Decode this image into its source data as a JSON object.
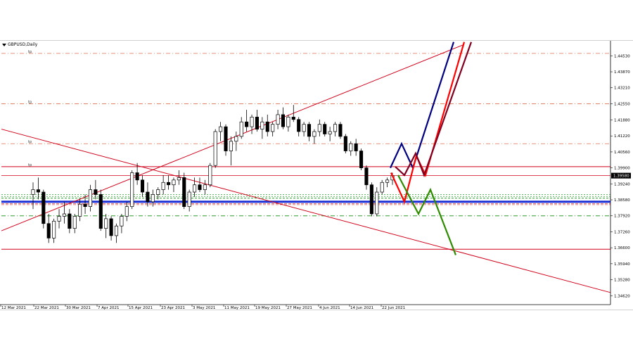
{
  "chart": {
    "symbol": "GBPUSD,Daily",
    "price_axis": [
      "1.44530",
      "1.43870",
      "1.43210",
      "1.42550",
      "1.41880",
      "1.41220",
      "1.40560",
      "1.39900",
      "1.39240",
      "1.38580",
      "1.37920",
      "1.37260",
      "1.36600",
      "1.35940",
      "1.35280",
      "1.34620"
    ],
    "current_price": "1.39580",
    "time_axis": [
      "12 Mar 2021",
      "22 Mar 2021",
      "30 Mar 2021",
      "7 Apr 2021",
      "15 Apr 2021",
      "23 Apr 2021",
      "3 May 2021",
      "11 May 2021",
      "19 May 2021",
      "27 May 2021",
      "4 Jun 2021",
      "14 Jun 2021",
      "22 Jun 2021"
    ],
    "level_labels": [
      "tp",
      "tp",
      "tp",
      "tp"
    ],
    "colors": {
      "bull_candle": "#ffffff",
      "bear_candle": "#000000",
      "trendline": "#d0021b",
      "dashdot": "#e07050",
      "blue_zone": "#1a2fd6",
      "green_dash": "#2e9e2e",
      "navy_path": "#000080",
      "red_path": "#ff0000",
      "maroon_path": "#800020",
      "green_path": "#2e8b00"
    }
  },
  "chart_data": {
    "type": "candlestick",
    "title": "GBPUSD,Daily",
    "ylim": [
      1.3425,
      1.4515
    ],
    "x": [
      "12 Mar 2021",
      "22 Mar 2021",
      "30 Mar 2021",
      "7 Apr 2021",
      "15 Apr 2021",
      "23 Apr 2021",
      "3 May 2021",
      "11 May 2021",
      "19 May 2021",
      "27 May 2021",
      "4 Jun 2021",
      "14 Jun 2021",
      "22 Jun 2021"
    ],
    "ohlc": [
      [
        1.388,
        1.393,
        1.382,
        1.39
      ],
      [
        1.39,
        1.395,
        1.386,
        1.389
      ],
      [
        1.389,
        1.39,
        1.374,
        1.376
      ],
      [
        1.376,
        1.38,
        1.368,
        1.37
      ],
      [
        1.37,
        1.378,
        1.368,
        1.377
      ],
      [
        1.377,
        1.382,
        1.374,
        1.379
      ],
      [
        1.379,
        1.385,
        1.376,
        1.38
      ],
      [
        1.38,
        1.382,
        1.372,
        1.374
      ],
      [
        1.374,
        1.38,
        1.372,
        1.379
      ],
      [
        1.379,
        1.386,
        1.377,
        1.384
      ],
      [
        1.384,
        1.388,
        1.38,
        1.383
      ],
      [
        1.383,
        1.392,
        1.381,
        1.39
      ],
      [
        1.39,
        1.394,
        1.386,
        1.388
      ],
      [
        1.388,
        1.39,
        1.373,
        1.374
      ],
      [
        1.374,
        1.38,
        1.37,
        1.378
      ],
      [
        1.378,
        1.379,
        1.369,
        1.371
      ],
      [
        1.371,
        1.376,
        1.368,
        1.375
      ],
      [
        1.375,
        1.38,
        1.372,
        1.379
      ],
      [
        1.379,
        1.385,
        1.377,
        1.383
      ],
      [
        1.383,
        1.398,
        1.382,
        1.397
      ],
      [
        1.397,
        1.401,
        1.392,
        1.394
      ],
      [
        1.394,
        1.396,
        1.387,
        1.389
      ],
      [
        1.389,
        1.393,
        1.383,
        1.385
      ],
      [
        1.385,
        1.39,
        1.383,
        1.388
      ],
      [
        1.388,
        1.391,
        1.386,
        1.39
      ],
      [
        1.39,
        1.396,
        1.388,
        1.393
      ],
      [
        1.393,
        1.396,
        1.39,
        1.392
      ],
      [
        1.392,
        1.395,
        1.389,
        1.394
      ],
      [
        1.394,
        1.398,
        1.392,
        1.395
      ],
      [
        1.395,
        1.397,
        1.382,
        1.383
      ],
      [
        1.383,
        1.39,
        1.381,
        1.389
      ],
      [
        1.389,
        1.395,
        1.387,
        1.392
      ],
      [
        1.392,
        1.395,
        1.389,
        1.39
      ],
      [
        1.39,
        1.394,
        1.388,
        1.392
      ],
      [
        1.392,
        1.401,
        1.391,
        1.4
      ],
      [
        1.4,
        1.415,
        1.399,
        1.414
      ],
      [
        1.414,
        1.418,
        1.41,
        1.416
      ],
      [
        1.416,
        1.417,
        1.404,
        1.406
      ],
      [
        1.406,
        1.412,
        1.4,
        1.41
      ],
      [
        1.41,
        1.414,
        1.406,
        1.412
      ],
      [
        1.412,
        1.42,
        1.411,
        1.418
      ],
      [
        1.418,
        1.423,
        1.414,
        1.416
      ],
      [
        1.416,
        1.421,
        1.413,
        1.42
      ],
      [
        1.42,
        1.423,
        1.414,
        1.415
      ],
      [
        1.415,
        1.42,
        1.411,
        1.418
      ],
      [
        1.418,
        1.421,
        1.412,
        1.414
      ],
      [
        1.414,
        1.418,
        1.412,
        1.417
      ],
      [
        1.417,
        1.423,
        1.415,
        1.421
      ],
      [
        1.421,
        1.424,
        1.415,
        1.416
      ],
      [
        1.416,
        1.421,
        1.414,
        1.42
      ],
      [
        1.42,
        1.425,
        1.418,
        1.419
      ],
      [
        1.419,
        1.42,
        1.412,
        1.414
      ],
      [
        1.414,
        1.418,
        1.412,
        1.417
      ],
      [
        1.417,
        1.418,
        1.41,
        1.412
      ],
      [
        1.412,
        1.415,
        1.409,
        1.414
      ],
      [
        1.414,
        1.419,
        1.412,
        1.417
      ],
      [
        1.417,
        1.418,
        1.412,
        1.413
      ],
      [
        1.413,
        1.416,
        1.41,
        1.414
      ],
      [
        1.414,
        1.418,
        1.412,
        1.417
      ],
      [
        1.417,
        1.418,
        1.411,
        1.412
      ],
      [
        1.412,
        1.413,
        1.405,
        1.406
      ],
      [
        1.406,
        1.41,
        1.404,
        1.409
      ],
      [
        1.409,
        1.411,
        1.404,
        1.406
      ],
      [
        1.406,
        1.407,
        1.398,
        1.399
      ],
      [
        1.399,
        1.4,
        1.39,
        1.392
      ],
      [
        1.392,
        1.393,
        1.379,
        1.38
      ],
      [
        1.38,
        1.391,
        1.379,
        1.389
      ],
      [
        1.389,
        1.394,
        1.388,
        1.393
      ],
      [
        1.393,
        1.395,
        1.391,
        1.394
      ],
      [
        1.394,
        1.397,
        1.392,
        1.3958
      ]
    ],
    "horizontal_levels": [
      1.4463,
      1.4255,
      1.409,
      1.3995,
      1.3958,
      1.3865,
      1.385,
      1.3792,
      1.3654
    ],
    "ylabel": "",
    "xlabel": ""
  }
}
